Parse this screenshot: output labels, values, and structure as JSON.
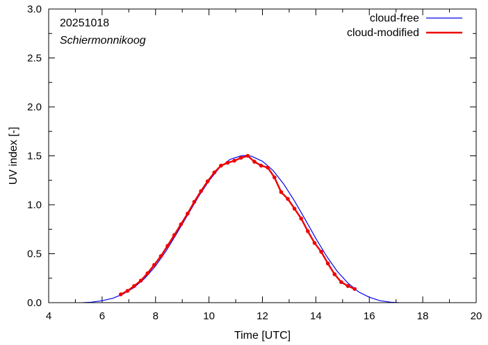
{
  "chart_data": {
    "type": "line",
    "title": "",
    "xlabel": "Time  [UTC]",
    "ylabel": "UV index  [-]",
    "xlim": [
      4,
      20
    ],
    "ylim": [
      0.0,
      3.0
    ],
    "xticks": [
      "4",
      "6",
      "8",
      "10",
      "12",
      "14",
      "16",
      "18",
      "20"
    ],
    "yticks": [
      "0.0",
      "0.5",
      "1.0",
      "1.5",
      "2.0",
      "2.5",
      "3.0"
    ],
    "grid": false,
    "legend_position": "top-right",
    "annotations": {
      "date": "20251018",
      "location": "Schiermonnikoog"
    },
    "series": [
      {
        "name": "cloud-free",
        "color": "#0000ee",
        "markers": false,
        "x": [
          5.3,
          5.6,
          6.0,
          6.4,
          6.8,
          7.2,
          7.6,
          8.0,
          8.4,
          8.8,
          9.2,
          9.6,
          10.0,
          10.4,
          10.8,
          11.2,
          11.4,
          11.6,
          12.0,
          12.4,
          12.8,
          13.2,
          13.6,
          14.0,
          14.4,
          14.8,
          15.2,
          15.6,
          16.0,
          16.4,
          16.8,
          17.1
        ],
        "values": [
          0.0,
          0.005,
          0.02,
          0.045,
          0.09,
          0.155,
          0.25,
          0.375,
          0.53,
          0.71,
          0.895,
          1.08,
          1.245,
          1.38,
          1.465,
          1.5,
          1.505,
          1.495,
          1.445,
          1.35,
          1.21,
          1.04,
          0.85,
          0.655,
          0.475,
          0.32,
          0.2,
          0.11,
          0.055,
          0.02,
          0.005,
          0.0
        ]
      },
      {
        "name": "cloud-modified",
        "color": "#ee0000",
        "markers": true,
        "x": [
          6.7,
          6.95,
          7.2,
          7.45,
          7.7,
          7.95,
          8.2,
          8.45,
          8.7,
          8.95,
          9.2,
          9.45,
          9.7,
          9.95,
          10.2,
          10.45,
          10.7,
          10.95,
          11.2,
          11.45,
          11.7,
          11.95,
          12.2,
          12.45,
          12.7,
          12.95,
          13.2,
          13.45,
          13.7,
          13.95,
          14.2,
          14.45,
          14.7,
          14.95,
          15.2,
          15.45
        ],
        "values": [
          0.085,
          0.12,
          0.17,
          0.225,
          0.3,
          0.385,
          0.475,
          0.58,
          0.69,
          0.8,
          0.91,
          1.03,
          1.14,
          1.24,
          1.33,
          1.4,
          1.43,
          1.45,
          1.48,
          1.5,
          1.44,
          1.4,
          1.38,
          1.28,
          1.13,
          1.06,
          0.96,
          0.86,
          0.73,
          0.61,
          0.52,
          0.4,
          0.29,
          0.21,
          0.17,
          0.14
        ]
      }
    ]
  }
}
